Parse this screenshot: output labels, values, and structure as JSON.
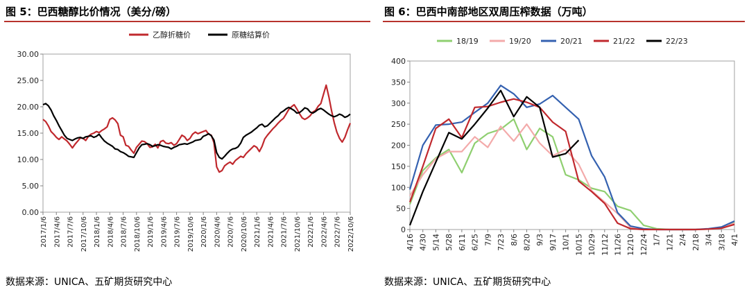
{
  "panels": [
    {
      "title": "图 5：巴西糖醇比价情况（美分/磅）",
      "source": "数据来源：UNICA、五矿期货研究中心"
    },
    {
      "title": "图 6：巴西中南部地区双周压榨数据（万吨）",
      "source": "数据来源：UNICA、五矿期货研究中心"
    }
  ],
  "chart_data": [
    {
      "type": "line",
      "ylim": [
        0,
        30
      ],
      "yticks": [
        "0.00",
        "5.00",
        "10.00",
        "15.00",
        "20.00",
        "25.00",
        "30.00"
      ],
      "xticks": [
        "2017/1/6",
        "2017/4/6",
        "2017/7/6",
        "2017/10/6",
        "2018/1/6",
        "2018/4/6",
        "2018/7/6",
        "2018/10/6",
        "2019/1/6",
        "2019/4/6",
        "2019/7/6",
        "2019/10/6",
        "2020/1/6",
        "2020/4/6",
        "2020/7/6",
        "2020/10/6",
        "2021/1/6",
        "2021/4/6",
        "2021/7/6",
        "2021/10/6",
        "2022/1/6",
        "2022/4/6",
        "2022/7/6",
        "2022/10/6"
      ],
      "legend_position": "top",
      "series": [
        {
          "name": "乙醇折糖价",
          "color": "#c0282d",
          "values": [
            17.6,
            17.2,
            16.4,
            15.3,
            14.8,
            14.2,
            13.8,
            14.3,
            13.9,
            13.5,
            12.9,
            12.2,
            12.9,
            13.5,
            14.1,
            14.0,
            13.6,
            14.4,
            14.8,
            15.0,
            15.3,
            15.1,
            15.5,
            15.8,
            16.2,
            17.6,
            17.9,
            17.5,
            16.8,
            14.6,
            14.3,
            12.7,
            12.5,
            11.8,
            11.2,
            12.3,
            12.9,
            13.5,
            13.4,
            13.0,
            12.3,
            12.4,
            12.9,
            12.2,
            13.4,
            13.6,
            13.1,
            13.0,
            13.2,
            12.7,
            13.0,
            13.8,
            14.6,
            14.3,
            13.6,
            14.0,
            14.8,
            15.2,
            14.9,
            15.1,
            15.3,
            15.5,
            14.8,
            14.6,
            13.2,
            8.6,
            7.6,
            7.9,
            8.8,
            9.2,
            9.5,
            9.1,
            9.8,
            10.2,
            10.6,
            10.4,
            11.1,
            11.6,
            12.1,
            12.6,
            12.3,
            11.5,
            12.5,
            13.9,
            14.6,
            15.2,
            15.8,
            16.3,
            16.9,
            17.4,
            17.8,
            18.6,
            19.5,
            20.0,
            20.4,
            19.6,
            18.7,
            17.9,
            17.6,
            17.9,
            18.3,
            19.0,
            19.3,
            20.1,
            20.6,
            22.4,
            24.1,
            21.9,
            19.3,
            17.0,
            15.2,
            14.0,
            13.3,
            14.2,
            15.6,
            16.9
          ]
        },
        {
          "name": "原糖结算价",
          "color": "#000000",
          "values": [
            20.4,
            20.6,
            20.2,
            19.4,
            18.3,
            17.4,
            16.4,
            15.5,
            14.6,
            14.0,
            13.8,
            13.6,
            13.9,
            14.1,
            14.2,
            14.0,
            14.3,
            14.4,
            14.5,
            14.2,
            14.4,
            14.8,
            14.1,
            13.5,
            13.1,
            12.8,
            12.5,
            12.0,
            11.9,
            11.5,
            11.3,
            11.0,
            10.6,
            10.5,
            10.4,
            11.3,
            12.2,
            12.8,
            12.9,
            13.0,
            12.8,
            12.5,
            12.6,
            12.8,
            12.7,
            12.5,
            12.4,
            12.3,
            12.0,
            12.3,
            12.5,
            12.8,
            12.9,
            13.0,
            12.9,
            13.1,
            13.3,
            13.6,
            13.7,
            13.8,
            14.4,
            14.6,
            14.9,
            14.5,
            13.7,
            11.3,
            10.4,
            10.1,
            10.6,
            11.2,
            11.7,
            12.0,
            12.1,
            12.4,
            13.1,
            14.2,
            14.6,
            14.9,
            15.2,
            15.6,
            16.0,
            16.5,
            16.7,
            16.2,
            16.4,
            16.9,
            17.4,
            17.9,
            18.3,
            18.9,
            19.2,
            19.6,
            19.9,
            19.6,
            19.3,
            18.8,
            18.9,
            19.3,
            19.8,
            19.6,
            19.0,
            18.8,
            19.1,
            19.5,
            19.7,
            19.4,
            19.0,
            18.6,
            18.3,
            18.1,
            18.3,
            18.6,
            18.4,
            18.0,
            18.2,
            18.6
          ]
        }
      ]
    },
    {
      "type": "line",
      "ylim": [
        0,
        400
      ],
      "yticks": [
        "0",
        "50",
        "100",
        "150",
        "200",
        "250",
        "300",
        "350",
        "400"
      ],
      "xticks": [
        "4/16",
        "4/30",
        "5/14",
        "5/28",
        "6/11",
        "6/25",
        "7/9",
        "7/23",
        "8/6",
        "8/20",
        "9/3",
        "9/17",
        "10/1",
        "10/15",
        "10/29",
        "11/12",
        "11/26",
        "12/10",
        "12/24",
        "1/7",
        "1/21",
        "2/4",
        "2/18",
        "3/4",
        "3/18",
        "4/1"
      ],
      "legend_position": "top",
      "series": [
        {
          "name": "18/19",
          "color": "#8fcf70",
          "values": [
            60,
            140,
            170,
            190,
            135,
            205,
            228,
            238,
            262,
            190,
            240,
            220,
            130,
            118,
            98,
            90,
            55,
            45,
            10,
            2,
            0,
            0,
            0,
            1,
            4,
            18
          ]
        },
        {
          "name": "19/20",
          "color": "#f3aaaa",
          "values": [
            80,
            130,
            168,
            185,
            185,
            220,
            195,
            245,
            210,
            250,
            205,
            175,
            190,
            155,
            92,
            65,
            38,
            5,
            1,
            0,
            0,
            0,
            0,
            1,
            3,
            15
          ]
        },
        {
          "name": "20/21",
          "color": "#3461b0",
          "values": [
            95,
            200,
            248,
            250,
            255,
            278,
            300,
            342,
            322,
            290,
            298,
            318,
            290,
            262,
            175,
            125,
            40,
            8,
            2,
            0,
            0,
            0,
            0,
            2,
            6,
            20
          ]
        },
        {
          "name": "21/22",
          "color": "#c0282d",
          "values": [
            65,
            150,
            240,
            262,
            218,
            290,
            292,
            302,
            310,
            302,
            290,
            255,
            233,
            115,
            90,
            62,
            15,
            2,
            0,
            0,
            0,
            0,
            0,
            1,
            3,
            12
          ]
        },
        {
          "name": "22/23",
          "color": "#000000",
          "values": [
            10,
            90,
            160,
            230,
            215,
            250,
            288,
            330,
            268,
            315,
            290,
            172,
            180,
            212
          ]
        }
      ]
    }
  ]
}
